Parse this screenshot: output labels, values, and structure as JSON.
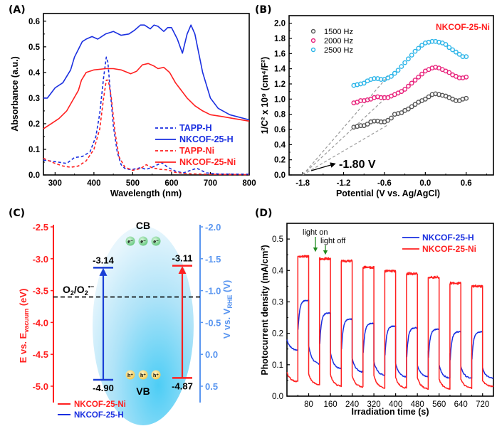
{
  "figure": {
    "panels": [
      "(A)",
      "(B)",
      "(C)",
      "(D)"
    ]
  },
  "chart_data": [
    {
      "id": "A",
      "type": "line",
      "title": "",
      "xlabel": "Wavelength (nm)",
      "ylabel": "Absorbance (a.u.)",
      "xlim": [
        270,
        800
      ],
      "ylim": [
        0,
        0.63
      ],
      "xticks": [
        "300",
        "400",
        "500",
        "600",
        "700",
        "800"
      ],
      "yticks": [
        "0.0",
        "0.1",
        "0.2",
        "0.3",
        "0.4",
        "0.5",
        "0.6"
      ],
      "legend_position": "bottom-right",
      "series": [
        {
          "name": "TAPP-H",
          "color": "#1a2fe0",
          "style": "dashed",
          "x": [
            270,
            300,
            330,
            350,
            370,
            390,
            405,
            415,
            425,
            432,
            436,
            442,
            450,
            460,
            470,
            480,
            490,
            500,
            520,
            535,
            550,
            575,
            590,
            610,
            630,
            665,
            690,
            720,
            800
          ],
          "y": [
            0.058,
            0.052,
            0.045,
            0.068,
            0.072,
            0.09,
            0.15,
            0.24,
            0.38,
            0.46,
            0.44,
            0.33,
            0.19,
            0.09,
            0.04,
            0.025,
            0.022,
            0.022,
            0.028,
            0.022,
            0.03,
            0.048,
            0.03,
            0.015,
            0.008,
            0.026,
            0.008,
            0.004,
            0.003
          ]
        },
        {
          "name": "NKCOF-25-H",
          "color": "#1a2fe0",
          "style": "solid",
          "x": [
            270,
            280,
            300,
            320,
            340,
            350,
            360,
            370,
            380,
            395,
            410,
            430,
            450,
            470,
            490,
            505,
            520,
            530,
            545,
            555,
            565,
            580,
            590,
            600,
            615,
            628,
            640,
            650,
            660,
            680,
            700,
            720,
            750,
            800
          ],
          "y": [
            0.3,
            0.3,
            0.34,
            0.36,
            0.41,
            0.46,
            0.49,
            0.52,
            0.53,
            0.54,
            0.53,
            0.55,
            0.56,
            0.545,
            0.55,
            0.565,
            0.585,
            0.585,
            0.57,
            0.585,
            0.58,
            0.56,
            0.575,
            0.575,
            0.53,
            0.475,
            0.55,
            0.585,
            0.55,
            0.4,
            0.3,
            0.26,
            0.235,
            0.215
          ]
        },
        {
          "name": "TAPP-Ni",
          "color": "#ff2020",
          "style": "dashed",
          "x": [
            270,
            300,
            320,
            340,
            360,
            380,
            400,
            415,
            425,
            432,
            437,
            445,
            455,
            465,
            480,
            500,
            520,
            535,
            550,
            570,
            590,
            610,
            640,
            680,
            720,
            800
          ],
          "y": [
            0.065,
            0.045,
            0.035,
            0.03,
            0.035,
            0.055,
            0.1,
            0.18,
            0.3,
            0.37,
            0.37,
            0.3,
            0.16,
            0.07,
            0.03,
            0.018,
            0.025,
            0.04,
            0.028,
            0.022,
            0.02,
            0.01,
            0.005,
            0.003,
            0.002,
            0.001
          ]
        },
        {
          "name": "NKCOF-25-Ni",
          "color": "#ff2020",
          "style": "solid",
          "x": [
            270,
            290,
            310,
            330,
            345,
            360,
            368,
            380,
            400,
            430,
            450,
            470,
            495,
            510,
            525,
            540,
            555,
            565,
            580,
            595,
            610,
            625,
            640,
            660,
            680,
            700,
            730,
            760,
            800
          ],
          "y": [
            0.18,
            0.2,
            0.22,
            0.25,
            0.29,
            0.33,
            0.37,
            0.4,
            0.41,
            0.415,
            0.415,
            0.41,
            0.395,
            0.405,
            0.43,
            0.435,
            0.425,
            0.415,
            0.42,
            0.4,
            0.36,
            0.33,
            0.3,
            0.27,
            0.25,
            0.235,
            0.228,
            0.22,
            0.21
          ]
        }
      ]
    },
    {
      "id": "B",
      "type": "scatter",
      "title": "NKCOF-25-Ni",
      "title_color": "#ff2020",
      "xlabel": "Potential (V vs. Ag/AgCl)",
      "ylabel": "1/C² x 10⁹ (cm⁴/F²)",
      "xlim": [
        -2.0,
        1.0
      ],
      "ylim": [
        0,
        2.1
      ],
      "xticks": [
        "-1.8",
        "-1.2",
        "-0.6",
        "0.0",
        "0.6"
      ],
      "yticks": [
        "0.0",
        "0.2",
        "0.4",
        "0.6",
        "0.8",
        "1.0",
        "1.2",
        "1.4",
        "1.6",
        "1.8",
        "2.0"
      ],
      "legend_position": "top-left",
      "annotation": "-1.80 V",
      "series": [
        {
          "name": "1500 Hz",
          "color": "#555555",
          "x": [
            -1.05,
            -1.0,
            -0.95,
            -0.9,
            -0.85,
            -0.8,
            -0.75,
            -0.7,
            -0.65,
            -0.6,
            -0.55,
            -0.5,
            -0.45,
            -0.4,
            -0.35,
            -0.3,
            -0.25,
            -0.2,
            -0.15,
            -0.1,
            -0.05,
            0.0,
            0.05,
            0.1,
            0.15,
            0.2,
            0.25,
            0.3,
            0.35,
            0.4,
            0.45,
            0.5,
            0.55,
            0.6
          ],
          "y": [
            0.63,
            0.64,
            0.65,
            0.65,
            0.67,
            0.7,
            0.71,
            0.71,
            0.7,
            0.7,
            0.72,
            0.75,
            0.8,
            0.81,
            0.82,
            0.85,
            0.87,
            0.9,
            0.93,
            0.96,
            0.98,
            1.0,
            1.03,
            1.06,
            1.07,
            1.06,
            1.05,
            1.04,
            1.02,
            1.0,
            0.98,
            0.98,
            1.0,
            1.01
          ]
        },
        {
          "name": "2000 Hz",
          "color": "#e8207a",
          "x": [
            -1.05,
            -1.0,
            -0.95,
            -0.9,
            -0.85,
            -0.8,
            -0.75,
            -0.7,
            -0.65,
            -0.6,
            -0.55,
            -0.5,
            -0.45,
            -0.4,
            -0.35,
            -0.3,
            -0.25,
            -0.2,
            -0.15,
            -0.1,
            -0.05,
            0.0,
            0.05,
            0.1,
            0.15,
            0.2,
            0.25,
            0.3,
            0.35,
            0.4,
            0.45,
            0.5,
            0.55,
            0.6
          ],
          "y": [
            0.95,
            0.96,
            0.98,
            0.98,
            0.99,
            1.0,
            1.02,
            1.03,
            1.02,
            1.02,
            1.02,
            1.04,
            1.06,
            1.08,
            1.1,
            1.13,
            1.17,
            1.21,
            1.25,
            1.29,
            1.33,
            1.37,
            1.39,
            1.41,
            1.42,
            1.41,
            1.39,
            1.37,
            1.35,
            1.32,
            1.3,
            1.28,
            1.28,
            1.29
          ]
        },
        {
          "name": "2500 Hz",
          "color": "#2ab4e8",
          "x": [
            -1.05,
            -1.0,
            -0.95,
            -0.9,
            -0.85,
            -0.8,
            -0.75,
            -0.7,
            -0.65,
            -0.6,
            -0.55,
            -0.5,
            -0.45,
            -0.4,
            -0.35,
            -0.3,
            -0.25,
            -0.2,
            -0.15,
            -0.1,
            -0.05,
            0.0,
            0.05,
            0.1,
            0.15,
            0.2,
            0.25,
            0.3,
            0.35,
            0.4,
            0.45,
            0.5,
            0.55,
            0.6
          ],
          "y": [
            1.18,
            1.19,
            1.2,
            1.21,
            1.24,
            1.26,
            1.27,
            1.27,
            1.26,
            1.26,
            1.28,
            1.3,
            1.34,
            1.38,
            1.43,
            1.48,
            1.53,
            1.58,
            1.63,
            1.67,
            1.71,
            1.74,
            1.75,
            1.76,
            1.76,
            1.75,
            1.74,
            1.72,
            1.68,
            1.65,
            1.62,
            1.59,
            1.56,
            1.56
          ]
        }
      ],
      "fit_lines": [
        {
          "from": [
            -1.8,
            0.0
          ],
          "to": [
            -0.55,
            0.66
          ]
        },
        {
          "from": [
            -1.8,
            0.0
          ],
          "to": [
            -0.6,
            1.0
          ]
        },
        {
          "from": [
            -1.8,
            0.0
          ],
          "to": [
            -0.55,
            1.3
          ]
        }
      ]
    },
    {
      "id": "C",
      "type": "diagram",
      "ylabel_left": "E vs. E_vacuum (eV)",
      "ylabel_right": "V vs. V_RHE (V)",
      "ylim_left": [
        -2.5,
        -5.25
      ],
      "yticks_left": [
        "-2.5",
        "-3.0",
        "-3.5",
        "-4.0",
        "-4.5",
        "-5.0"
      ],
      "yticks_right": [
        "-2.0",
        "-1.5",
        "-1.0",
        "-0.5",
        "0.0",
        "0.5"
      ],
      "left_color": "#ff2020",
      "right_color": "#5a96f0",
      "cb_label": "CB",
      "vb_label": "VB",
      "electron_label": "e⁻",
      "hole_label": "h⁺",
      "redox_label": "O₂/O₂•⁻",
      "redox_level": -3.6,
      "levels": [
        {
          "name": "NKCOF-25-H",
          "color": "#1a3fd6",
          "cb": -3.14,
          "vb": -4.9,
          "cb_label": "-3.14",
          "vb_label": "-4.90"
        },
        {
          "name": "NKCOF-25-Ni",
          "color": "#ff2020",
          "cb": -3.11,
          "vb": -4.87,
          "cb_label": "-3.11",
          "vb_label": "-4.87"
        }
      ],
      "legend": [
        {
          "name": "NKCOF-25-Ni",
          "color": "#ff2020"
        },
        {
          "name": "NKCOF-25-H",
          "color": "#1a2fe0"
        }
      ]
    },
    {
      "id": "D",
      "type": "line",
      "xlabel": "Irradiation time (s)",
      "ylabel": "Photocurrent density (mA/cm²)",
      "xlim": [
        0,
        760
      ],
      "ylim": [
        0,
        0.55
      ],
      "xticks": [
        "80",
        "160",
        "240",
        "320",
        "400",
        "480",
        "560",
        "640",
        "720"
      ],
      "yticks": [
        "0.0",
        "0.1",
        "0.2",
        "0.3",
        "0.4",
        "0.5"
      ],
      "legend_position": "top-right",
      "annotations": [
        "light on",
        "light off"
      ],
      "cycle_on_times": [
        40,
        120,
        200,
        280,
        360,
        440,
        520,
        600,
        680
      ],
      "cycle_length_s": 40,
      "series": [
        {
          "name": "NKCOF-25-H",
          "color": "#1a2fe0",
          "dark_start": [
            0.18,
            0.16,
            0.14,
            0.12,
            0.11,
            0.105,
            0.1,
            0.1,
            0.095,
            0.09
          ],
          "dark_end": [
            0.145,
            0.1,
            0.085,
            0.075,
            0.065,
            0.06,
            0.06,
            0.055,
            0.055,
            0.055
          ],
          "light_plateau": [
            0.305,
            0.265,
            0.245,
            0.232,
            0.223,
            0.218,
            0.213,
            0.205,
            0.205
          ]
        },
        {
          "name": "NKCOF-25-Ni",
          "color": "#ff2020",
          "dark_start": [
            0.075,
            0.07,
            0.07,
            0.065,
            0.065,
            0.06,
            0.06,
            0.055,
            0.055,
            0.05
          ],
          "dark_end": [
            0.045,
            0.035,
            0.03,
            0.028,
            0.025,
            0.025,
            0.022,
            0.022,
            0.025,
            0.03
          ],
          "light_plateau": [
            0.445,
            0.437,
            0.43,
            0.41,
            0.398,
            0.39,
            0.378,
            0.36,
            0.35
          ]
        }
      ]
    }
  ]
}
